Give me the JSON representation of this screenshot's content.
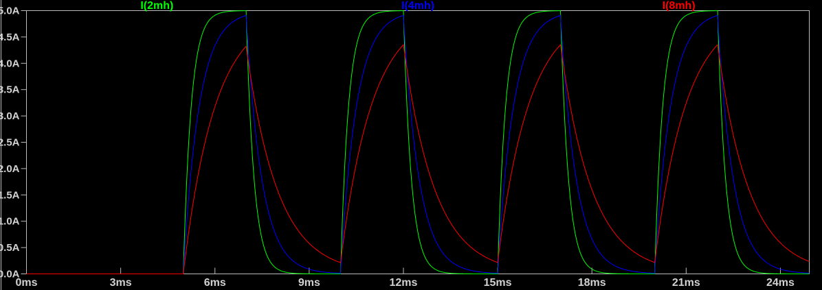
{
  "window": {
    "background": "#000000"
  },
  "colors": {
    "plot_background": "#000000",
    "axis_line": "#bcbcbc",
    "tick_text": "#d2d2d2",
    "series_green": "#00ff00",
    "series_blue": "#0000ff",
    "series_red": "#ff0000"
  },
  "chart_data": {
    "type": "line",
    "title": "",
    "xlabel": "",
    "ylabel": "",
    "grid": false,
    "legend_position": "top",
    "x_axis": {
      "unit": "ms",
      "range_ms": [
        0,
        24.92
      ],
      "tick_interval_ms": 3,
      "tick_values_ms": [
        0,
        3,
        6,
        9,
        12,
        15,
        18,
        21,
        24
      ],
      "tick_labels": [
        "0ms",
        "3ms",
        "6ms",
        "9ms",
        "12ms",
        "15ms",
        "18ms",
        "21ms",
        "24ms"
      ]
    },
    "y_axis": {
      "unit": "A",
      "range_A": [
        0,
        5
      ],
      "tick_interval_A": 0.5,
      "tick_values_A": [
        0,
        0.5,
        1,
        1.5,
        2,
        2.5,
        3,
        3.5,
        4,
        4.5,
        5
      ],
      "tick_labels": [
        "0.0A",
        "0.5A",
        "1.0A",
        "1.5A",
        "2.0A",
        "2.5A",
        "3.0A",
        "3.5A",
        "4.0A",
        "4.5A",
        "5.0A"
      ]
    },
    "excitation": {
      "waveform": "pulse",
      "low_A": 0,
      "high_A": 5,
      "delay_ms": 5,
      "on_time_ms": 2,
      "period_ms": 5,
      "pulse_on_intervals_ms": [
        [
          5,
          7
        ],
        [
          10,
          12
        ],
        [
          15,
          17
        ],
        [
          20,
          22
        ]
      ]
    },
    "series": [
      {
        "name": "I(2mh)",
        "color": "#00ff00",
        "inductance": "2mH",
        "tau_ms": 0.25,
        "peak_A": 5.0,
        "value_at_pulse_end_A": 5.0,
        "value_at_right_edge_A": 0.0
      },
      {
        "name": "I(4mh)",
        "color": "#0000ff",
        "inductance": "4mH",
        "tau_ms": 0.5,
        "peak_A": 4.91,
        "value_at_pulse_end_A": 4.91,
        "value_at_right_edge_A": 0.03
      },
      {
        "name": "I(8mh)",
        "color": "#ff0000",
        "inductance": "8mH",
        "tau_ms": 1.0,
        "peak_A": 4.35,
        "value_at_pulse_end_A": 4.35,
        "value_at_right_edge_A": 0.24
      }
    ],
    "draw_order": [
      "I(2mh)",
      "I(4mh)",
      "I(8mh)"
    ]
  }
}
